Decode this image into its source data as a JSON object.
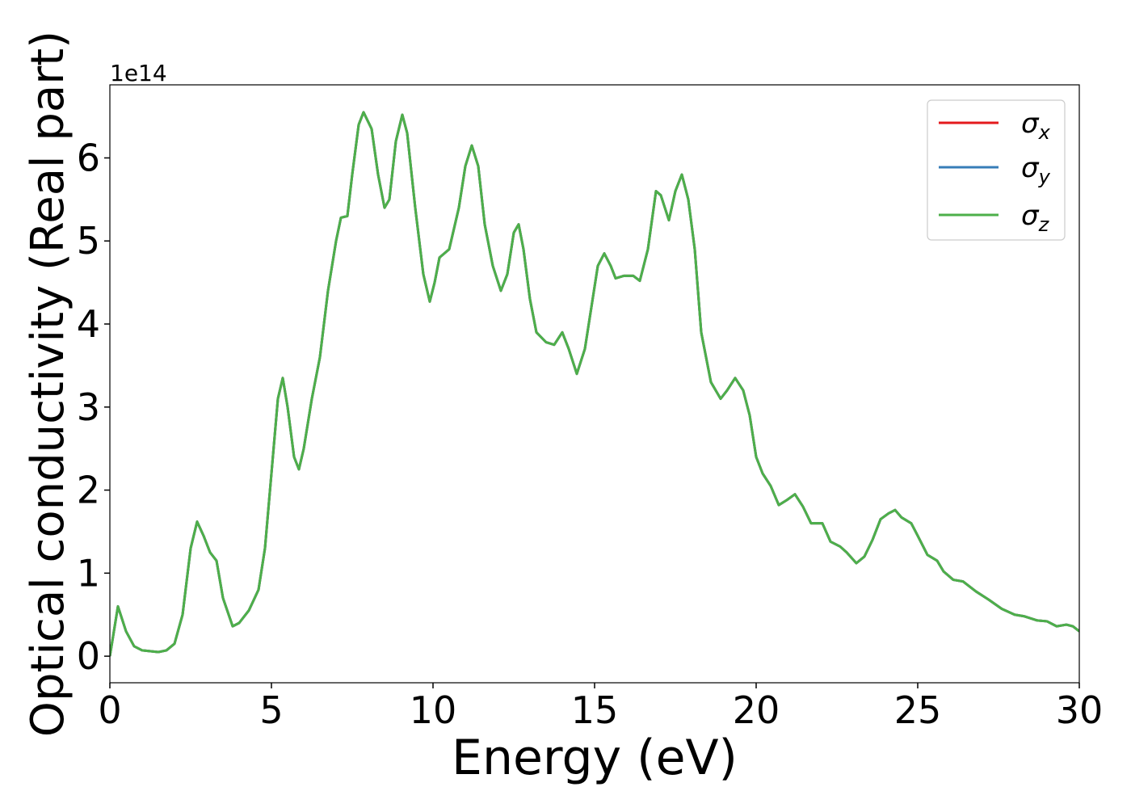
{
  "chart_data": {
    "type": "line",
    "xlabel": "Energy (eV)",
    "ylabel": "Optical conductivity (Real part)",
    "y_offset_label": "1e14",
    "x": [
      0,
      0.25,
      0.5,
      0.75,
      1,
      1.5,
      1.75,
      2,
      2.25,
      2.5,
      2.7,
      2.9,
      3.1,
      3.3,
      3.5,
      3.8,
      4.0,
      4.3,
      4.6,
      4.8,
      5.0,
      5.2,
      5.35,
      5.5,
      5.7,
      5.85,
      6.0,
      6.25,
      6.5,
      6.75,
      7.0,
      7.15,
      7.35,
      7.5,
      7.7,
      7.85,
      8.1,
      8.3,
      8.5,
      8.65,
      8.85,
      9.05,
      9.2,
      9.45,
      9.7,
      9.9,
      10.05,
      10.2,
      10.5,
      10.8,
      11.0,
      11.2,
      11.4,
      11.6,
      11.85,
      12.1,
      12.3,
      12.5,
      12.65,
      12.8,
      13.0,
      13.2,
      13.5,
      13.75,
      14.0,
      14.2,
      14.45,
      14.7,
      14.9,
      15.1,
      15.3,
      15.5,
      15.65,
      15.9,
      16.2,
      16.4,
      16.65,
      16.9,
      17.05,
      17.3,
      17.5,
      17.7,
      17.9,
      18.1,
      18.3,
      18.6,
      18.9,
      19.1,
      19.35,
      19.6,
      19.8,
      20.0,
      20.2,
      20.45,
      20.7,
      20.95,
      21.2,
      21.45,
      21.7,
      21.9,
      22.05,
      22.3,
      22.6,
      22.8,
      23.1,
      23.35,
      23.6,
      23.85,
      24.1,
      24.3,
      24.5,
      24.8,
      25.0,
      25.3,
      25.6,
      25.8,
      26.1,
      26.4,
      26.8,
      27.2,
      27.6,
      28.0,
      28.3,
      28.7,
      29.0,
      29.3,
      29.6,
      29.8,
      30
    ],
    "series": [
      {
        "name": "σx",
        "color": "#e41a1c",
        "values": [
          0.0,
          0.6,
          0.3,
          0.12,
          0.07,
          0.05,
          0.07,
          0.15,
          0.5,
          1.3,
          1.62,
          1.45,
          1.25,
          1.15,
          0.7,
          0.36,
          0.4,
          0.55,
          0.8,
          1.3,
          2.2,
          3.1,
          3.35,
          3.0,
          2.4,
          2.25,
          2.5,
          3.1,
          3.6,
          4.4,
          5.0,
          5.28,
          5.3,
          5.8,
          6.4,
          6.55,
          6.35,
          5.8,
          5.4,
          5.5,
          6.2,
          6.52,
          6.3,
          5.4,
          4.6,
          4.27,
          4.5,
          4.8,
          4.9,
          5.4,
          5.9,
          6.15,
          5.9,
          5.2,
          4.7,
          4.4,
          4.6,
          5.1,
          5.2,
          4.9,
          4.3,
          3.9,
          3.78,
          3.75,
          3.9,
          3.7,
          3.4,
          3.7,
          4.2,
          4.7,
          4.85,
          4.7,
          4.55,
          4.58,
          4.58,
          4.52,
          4.9,
          5.6,
          5.55,
          5.25,
          5.6,
          5.8,
          5.5,
          4.9,
          3.9,
          3.3,
          3.1,
          3.2,
          3.35,
          3.2,
          2.9,
          2.4,
          2.2,
          2.05,
          1.82,
          1.88,
          1.95,
          1.8,
          1.6,
          1.6,
          1.6,
          1.38,
          1.32,
          1.25,
          1.12,
          1.2,
          1.4,
          1.65,
          1.72,
          1.76,
          1.67,
          1.6,
          1.45,
          1.22,
          1.15,
          1.02,
          0.92,
          0.9,
          0.78,
          0.68,
          0.57,
          0.5,
          0.48,
          0.43,
          0.42,
          0.36,
          0.38,
          0.36,
          0.3
        ]
      },
      {
        "name": "σy",
        "color": "#377eb8",
        "values": [
          0.0,
          0.6,
          0.3,
          0.12,
          0.07,
          0.05,
          0.07,
          0.15,
          0.5,
          1.3,
          1.62,
          1.45,
          1.25,
          1.15,
          0.7,
          0.36,
          0.4,
          0.55,
          0.8,
          1.3,
          2.2,
          3.1,
          3.35,
          3.0,
          2.4,
          2.25,
          2.5,
          3.1,
          3.6,
          4.4,
          5.0,
          5.28,
          5.3,
          5.8,
          6.4,
          6.55,
          6.35,
          5.8,
          5.4,
          5.5,
          6.2,
          6.52,
          6.3,
          5.4,
          4.6,
          4.27,
          4.5,
          4.8,
          4.9,
          5.4,
          5.9,
          6.15,
          5.9,
          5.2,
          4.7,
          4.4,
          4.6,
          5.1,
          5.2,
          4.9,
          4.3,
          3.9,
          3.78,
          3.75,
          3.9,
          3.7,
          3.4,
          3.7,
          4.2,
          4.7,
          4.85,
          4.7,
          4.55,
          4.58,
          4.58,
          4.52,
          4.9,
          5.6,
          5.55,
          5.25,
          5.6,
          5.8,
          5.5,
          4.9,
          3.9,
          3.3,
          3.1,
          3.2,
          3.35,
          3.2,
          2.9,
          2.4,
          2.2,
          2.05,
          1.82,
          1.88,
          1.95,
          1.8,
          1.6,
          1.6,
          1.6,
          1.38,
          1.32,
          1.25,
          1.12,
          1.2,
          1.4,
          1.65,
          1.72,
          1.76,
          1.67,
          1.6,
          1.45,
          1.22,
          1.15,
          1.02,
          0.92,
          0.9,
          0.78,
          0.68,
          0.57,
          0.5,
          0.48,
          0.43,
          0.42,
          0.36,
          0.38,
          0.36,
          0.3
        ]
      },
      {
        "name": "σz",
        "color": "#4daf4a",
        "values": [
          0.0,
          0.6,
          0.3,
          0.12,
          0.07,
          0.05,
          0.07,
          0.15,
          0.5,
          1.3,
          1.62,
          1.45,
          1.25,
          1.15,
          0.7,
          0.36,
          0.4,
          0.55,
          0.8,
          1.3,
          2.2,
          3.1,
          3.35,
          3.0,
          2.4,
          2.25,
          2.5,
          3.1,
          3.6,
          4.4,
          5.0,
          5.28,
          5.3,
          5.8,
          6.4,
          6.55,
          6.35,
          5.8,
          5.4,
          5.5,
          6.2,
          6.52,
          6.3,
          5.4,
          4.6,
          4.27,
          4.5,
          4.8,
          4.9,
          5.4,
          5.9,
          6.15,
          5.9,
          5.2,
          4.7,
          4.4,
          4.6,
          5.1,
          5.2,
          4.9,
          4.3,
          3.9,
          3.78,
          3.75,
          3.9,
          3.7,
          3.4,
          3.7,
          4.2,
          4.7,
          4.85,
          4.7,
          4.55,
          4.58,
          4.58,
          4.52,
          4.9,
          5.6,
          5.55,
          5.25,
          5.6,
          5.8,
          5.5,
          4.9,
          3.9,
          3.3,
          3.1,
          3.2,
          3.35,
          3.2,
          2.9,
          2.4,
          2.2,
          2.05,
          1.82,
          1.88,
          1.95,
          1.8,
          1.6,
          1.6,
          1.6,
          1.38,
          1.32,
          1.25,
          1.12,
          1.2,
          1.4,
          1.65,
          1.72,
          1.76,
          1.67,
          1.6,
          1.45,
          1.22,
          1.15,
          1.02,
          0.92,
          0.9,
          0.78,
          0.68,
          0.57,
          0.5,
          0.48,
          0.43,
          0.42,
          0.36,
          0.38,
          0.36,
          0.3
        ]
      }
    ],
    "xlim": [
      0,
      30
    ],
    "xticks": [
      0,
      5,
      10,
      15,
      20,
      25,
      30
    ],
    "ylim": [
      -0.32,
      6.88
    ],
    "yticks": [
      0,
      1,
      2,
      3,
      4,
      5,
      6
    ],
    "grid": false,
    "legend": "upper right"
  }
}
